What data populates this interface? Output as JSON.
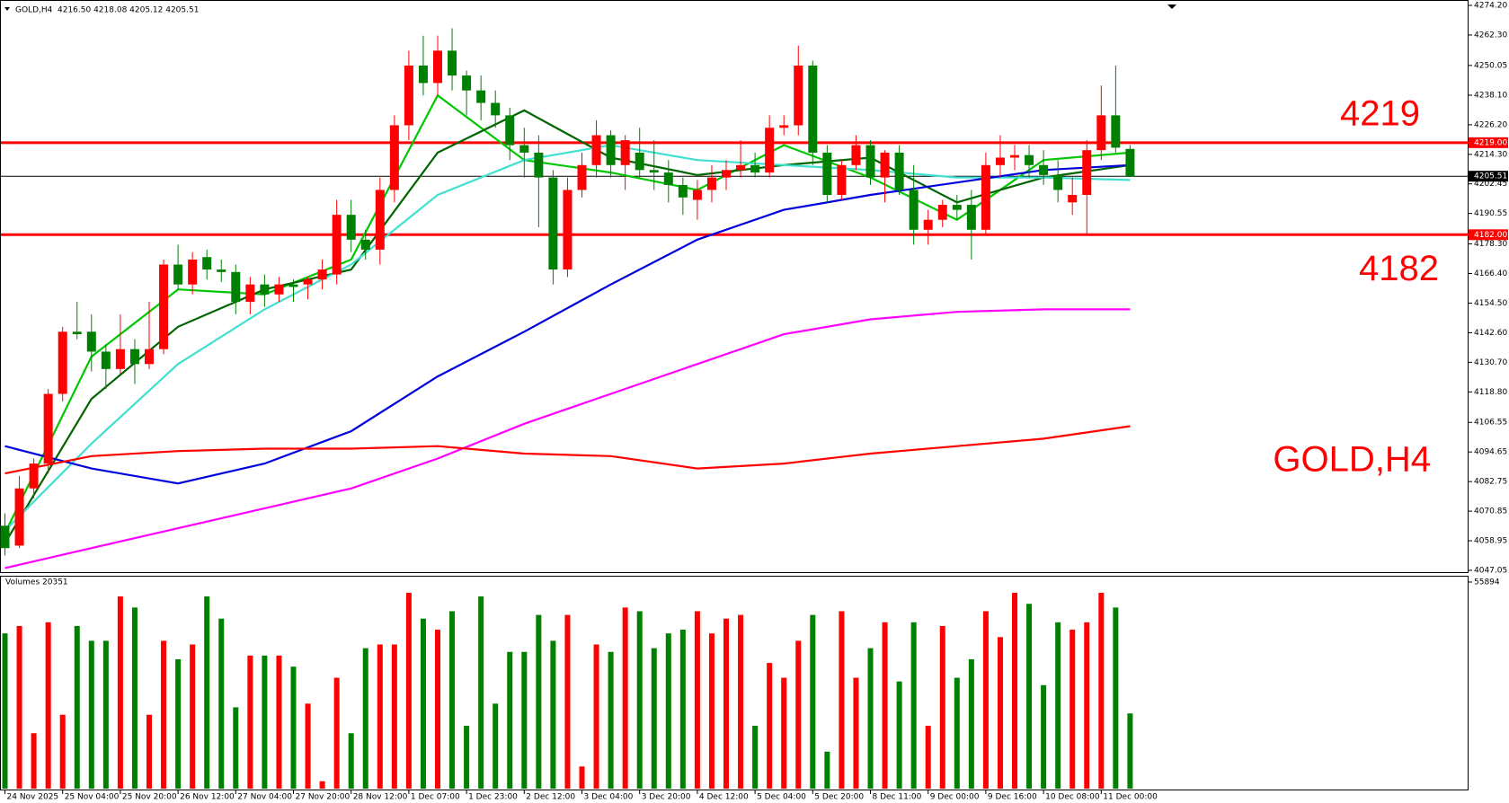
{
  "chart_data": {
    "type": "candlestick",
    "symbol": "GOLD,H4",
    "ohlc_text": "4216.50 4218.08 4205.12 4205.51",
    "up_color": "#ff0000",
    "down_color": "#008000",
    "categories": [
      "24 Nov 2025",
      null,
      null,
      null,
      "25 Nov 04:00",
      null,
      null,
      null,
      "25 Nov 20:00",
      null,
      null,
      null,
      "26 Nov 12:00",
      null,
      null,
      null,
      "27 Nov 04:00",
      null,
      null,
      null,
      "27 Nov 20:00",
      null,
      null,
      null,
      "28 Nov 12:00",
      null,
      null,
      null,
      "1 Dec 07:00",
      null,
      null,
      null,
      "1 Dec 23:00",
      null,
      null,
      null,
      "2 Dec 12:00",
      null,
      null,
      null,
      "3 Dec 04:00",
      null,
      null,
      null,
      "3 Dec 20:00",
      null,
      null,
      null,
      "4 Dec 12:00",
      null,
      null,
      null,
      "5 Dec 04:00",
      null,
      null,
      null,
      "5 Dec 20:00",
      null,
      null,
      null,
      "8 Dec 11:00",
      null,
      null,
      null,
      "9 Dec 00:00",
      null,
      null,
      null,
      "9 Dec 16:00",
      null,
      null,
      null,
      "10 Dec 08:00",
      null,
      null,
      null,
      "11 Dec 00:00",
      null,
      null
    ],
    "open": [
      4065,
      4057,
      4080,
      4090,
      4118,
      4143,
      4143,
      4135,
      4128,
      4136,
      4130,
      4136,
      4170,
      4162,
      4173,
      4168,
      4167,
      4155,
      4162,
      4158,
      4162,
      4162,
      4164,
      4166,
      4190,
      4180,
      4176,
      4200,
      4226,
      4250,
      4243,
      4256,
      4246,
      4240,
      4235,
      4230,
      4218,
      4215,
      4205,
      4168,
      4200,
      4210,
      4222,
      4210,
      4215,
      4208,
      4207,
      4202,
      4196,
      4200,
      4205,
      4208,
      4210,
      4207,
      4225,
      4226,
      4250,
      4215,
      4198,
      4210,
      4218,
      4205,
      4215,
      4200,
      4184,
      4188,
      4194,
      4194,
      4184,
      4210,
      4213,
      4214,
      4210,
      4206,
      4195,
      4198,
      4216,
      4230,
      4216.5
    ],
    "high": [
      4070,
      4085,
      4092,
      4120,
      4145,
      4155,
      4150,
      4138,
      4150,
      4140,
      4155,
      4172,
      4178,
      4175,
      4176,
      4172,
      4170,
      4165,
      4166,
      4165,
      4164,
      4165,
      4172,
      4196,
      4196,
      4184,
      4205,
      4230,
      4256,
      4262,
      4262,
      4265,
      4248,
      4246,
      4240,
      4233,
      4225,
      4222,
      4208,
      4205,
      4215,
      4228,
      4224,
      4222,
      4225,
      4220,
      4212,
      4205,
      4204,
      4210,
      4212,
      4220,
      4215,
      4230,
      4230,
      4258,
      4252,
      4218,
      4212,
      4222,
      4220,
      4216,
      4218,
      4210,
      4192,
      4196,
      4198,
      4200,
      4215,
      4222,
      4218,
      4218,
      4216,
      4212,
      4205,
      4220,
      4242,
      4250,
      4218.08
    ],
    "low": [
      4053,
      4056,
      4076,
      4086,
      4115,
      4140,
      4127,
      4120,
      4126,
      4122,
      4128,
      4134,
      4160,
      4158,
      4164,
      4163,
      4150,
      4150,
      4153,
      4155,
      4155,
      4156,
      4160,
      4162,
      4175,
      4172,
      4170,
      4195,
      4220,
      4238,
      4238,
      4240,
      4230,
      4228,
      4225,
      4212,
      4205,
      4185,
      4162,
      4165,
      4197,
      4205,
      4205,
      4200,
      4205,
      4200,
      4195,
      4190,
      4188,
      4195,
      4200,
      4205,
      4205,
      4205,
      4222,
      4222,
      4210,
      4195,
      4196,
      4208,
      4202,
      4195,
      4198,
      4178,
      4178,
      4185,
      4188,
      4172,
      4182,
      4205,
      4208,
      4205,
      4202,
      4195,
      4190,
      4182,
      4212,
      4215,
      4205.12
    ],
    "close": [
      4056,
      4080,
      4090,
      4118,
      4143,
      4142,
      4135,
      4128,
      4136,
      4130,
      4136,
      4170,
      4162,
      4172,
      4168,
      4167,
      4155,
      4162,
      4158,
      4162,
      4161,
      4164,
      4168,
      4190,
      4180,
      4176,
      4200,
      4226,
      4250,
      4243,
      4256,
      4246,
      4240,
      4235,
      4230,
      4218,
      4215,
      4205,
      4168,
      4200,
      4210,
      4222,
      4210,
      4220,
      4208,
      4207,
      4202,
      4197,
      4200,
      4205,
      4208,
      4210,
      4207,
      4225,
      4226,
      4250,
      4215,
      4198,
      4210,
      4218,
      4205,
      4215,
      4200,
      4184,
      4188,
      4194,
      4192,
      4184,
      4210,
      4213,
      4214,
      4210,
      4206,
      4200,
      4198,
      4216,
      4230,
      4217,
      4205.51
    ],
    "series": [
      {
        "color": "#00c800",
        "x": [
          0,
          6,
          12,
          18,
          24,
          30,
          36,
          42,
          48,
          54,
          60,
          66,
          72,
          78
        ],
        "values": [
          4062,
          4133,
          4160,
          4158,
          4172,
          4238,
          4212,
          4207,
          4200,
          4218,
          4205,
          4188,
          4212,
          4215
        ]
      },
      {
        "color": "#006400",
        "x": [
          0,
          6,
          12,
          18,
          24,
          30,
          36,
          42,
          48,
          54,
          60,
          66,
          72,
          78
        ],
        "values": [
          4058,
          4116,
          4145,
          4160,
          4168,
          4215,
          4232,
          4213,
          4206,
          4210,
          4213,
          4195,
          4205,
          4210
        ]
      },
      {
        "color": "#40e0d0",
        "x": [
          0,
          6,
          12,
          18,
          24,
          30,
          36,
          42,
          48,
          54,
          60,
          66,
          72,
          78
        ],
        "values": [
          4063,
          4098,
          4130,
          4152,
          4170,
          4198,
          4212,
          4218,
          4212,
          4210,
          4208,
          4205,
          4205,
          4204
        ]
      },
      {
        "color": "#0000dd",
        "x": [
          0,
          6,
          12,
          18,
          24,
          30,
          36,
          42,
          48,
          54,
          60,
          66,
          72,
          78
        ],
        "values": [
          4097,
          4088,
          4082,
          4090,
          4103,
          4125,
          4143,
          4162,
          4180,
          4192,
          4198,
          4203,
          4208,
          4210
        ]
      },
      {
        "color": "#ff00ff",
        "x": [
          0,
          6,
          12,
          18,
          24,
          30,
          36,
          42,
          48,
          54,
          60,
          66,
          72,
          78
        ],
        "values": [
          4048,
          4056,
          4064,
          4072,
          4080,
          4092,
          4106,
          4118,
          4130,
          4142,
          4148,
          4151,
          4152,
          4152
        ]
      },
      {
        "color": "#ff0000",
        "x": [
          0,
          6,
          12,
          18,
          24,
          30,
          36,
          42,
          48,
          54,
          60,
          66,
          72,
          78
        ],
        "values": [
          4086,
          4093,
          4095,
          4096,
          4096,
          4097,
          4094,
          4093,
          4088,
          4090,
          4094,
          4097,
          4100,
          4105
        ]
      }
    ],
    "levels": [
      {
        "value": 4219,
        "tag_label": "4219.00",
        "color": "#ff0000"
      },
      {
        "value": 4182,
        "tag_label": "4182.00",
        "color": "#ff0000"
      }
    ],
    "price_line": 4205.51,
    "annotation": "GOLD,H4",
    "ylim": [
      4047.05,
      4274.2
    ],
    "yticks": [
      {
        "value": 4274.2,
        "label": "4274.20"
      },
      {
        "value": 4262.3,
        "label": "4262.30"
      },
      4250.05,
      {
        "value": 4238.1,
        "label": "4238.10"
      },
      {
        "value": 4226.2,
        "label": "4226.20"
      },
      {
        "value": 4214.3,
        "label": "4214.30"
      },
      4202.45,
      4190.55,
      {
        "value": 4178.3,
        "label": "4178.30"
      },
      {
        "value": 4166.4,
        "label": "4166.40"
      },
      {
        "value": 4154.5,
        "label": "4154.50"
      },
      {
        "value": 4142.6,
        "label": "4142.60"
      },
      {
        "value": 4130.7,
        "label": "4130.70"
      },
      {
        "value": 4118.8,
        "label": "4118.80"
      },
      4106.55,
      4094.65,
      4082.75,
      4070.85,
      4058.95,
      4047.05
    ],
    "volume": {
      "title": "Volumes 20351",
      "values": [
        42000,
        44000,
        15000,
        45000,
        20000,
        44000,
        40000,
        40000,
        52000,
        49000,
        20000,
        40000,
        35000,
        39000,
        52000,
        46000,
        22000,
        36000,
        36000,
        36000,
        33000,
        23000,
        2000,
        30000,
        15000,
        38000,
        39000,
        39000,
        53000,
        46000,
        43000,
        48000,
        17000,
        52000,
        23000,
        37000,
        37000,
        47000,
        40000,
        47000,
        6000,
        39000,
        37000,
        49000,
        48000,
        38000,
        42000,
        43000,
        48000,
        42000,
        46000,
        47000,
        17000,
        34000,
        30000,
        40000,
        47000,
        10000,
        48000,
        30000,
        38000,
        45000,
        29000,
        45000,
        17000,
        44000,
        30000,
        35000,
        48000,
        41000,
        53000,
        50000,
        28000,
        45000,
        43000,
        45000,
        53000,
        49000,
        20351
      ],
      "ylim": [
        0,
        55894
      ],
      "yticks": [
        55894
      ]
    }
  }
}
